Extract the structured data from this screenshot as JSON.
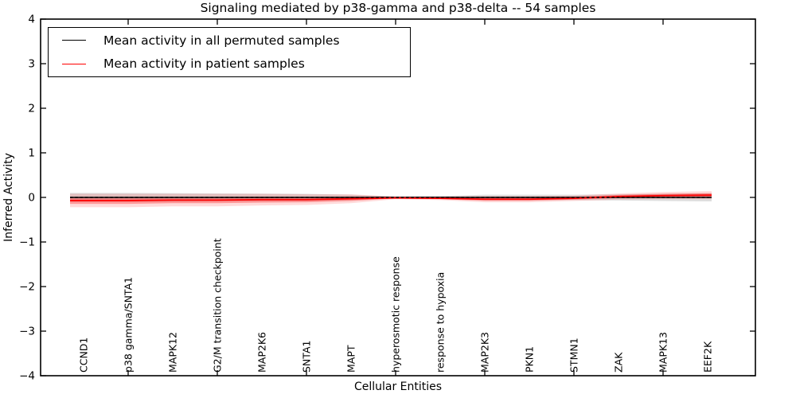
{
  "figure": {
    "title": "Signaling mediated by p38-gamma and p38-delta -- 54 samples",
    "background_color": "#ffffff",
    "accent_color": "#ff0000",
    "line_color": "#000000"
  },
  "chart_data": {
    "type": "line",
    "title": "Signaling mediated by p38-gamma and p38-delta -- 54 samples",
    "xlabel": "Cellular Entities",
    "ylabel": "Inferred Activity",
    "ylim": [
      -4,
      4
    ],
    "yticks": [
      4,
      3,
      2,
      1,
      0,
      -1,
      -2,
      -3,
      -4
    ],
    "ytick_labels": [
      "4",
      "3",
      "2",
      "1",
      "0",
      "−1",
      "−2",
      "−3",
      "−4"
    ],
    "x_tick_label_rotation_deg": 90,
    "grid": false,
    "legend_position": "upper left",
    "categories": [
      "CCND1",
      "p38 gamma/SNTA1",
      "MAPK12",
      "G2/M transition checkpoint",
      "MAP2K6",
      "SNTA1",
      "MAPT",
      "hyperosmotic response",
      "response to hypoxia",
      "MAP2K3",
      "PKN1",
      "STMN1",
      "ZAK",
      "MAPK13",
      "EEF2K"
    ],
    "series": [
      {
        "name": "Mean activity in all permuted samples",
        "color": "#000000",
        "line_style": "solid with dashed overlay",
        "values": [
          0,
          0,
          0,
          0,
          0,
          0,
          0,
          0,
          0,
          0,
          0,
          0,
          0,
          0,
          0
        ],
        "sigma": [
          0.1,
          0.1,
          0.095,
          0.09,
          0.085,
          0.08,
          0.06,
          0.02,
          0.03,
          0.06,
          0.06,
          0.06,
          0.07,
          0.08,
          0.09
        ]
      },
      {
        "name": "Mean activity in patient samples",
        "color": "#ff0000",
        "line_style": "solid",
        "values": [
          -0.07,
          -0.07,
          -0.06,
          -0.06,
          -0.05,
          -0.05,
          -0.03,
          -0.01,
          -0.02,
          -0.04,
          -0.04,
          -0.02,
          0.02,
          0.04,
          0.05
        ],
        "sigma": [
          0.075,
          0.075,
          0.07,
          0.07,
          0.065,
          0.06,
          0.05,
          0.015,
          0.02,
          0.035,
          0.035,
          0.03,
          0.035,
          0.04,
          0.045
        ]
      }
    ],
    "bands": {
      "permuted_fill": "#999999",
      "permuted_opacity": 0.32,
      "patient_outer_fill": "#ff0000",
      "patient_outer_opacity": 0.14,
      "patient_inner_fill": "#ff0000",
      "patient_inner_opacity": 0.3
    }
  }
}
